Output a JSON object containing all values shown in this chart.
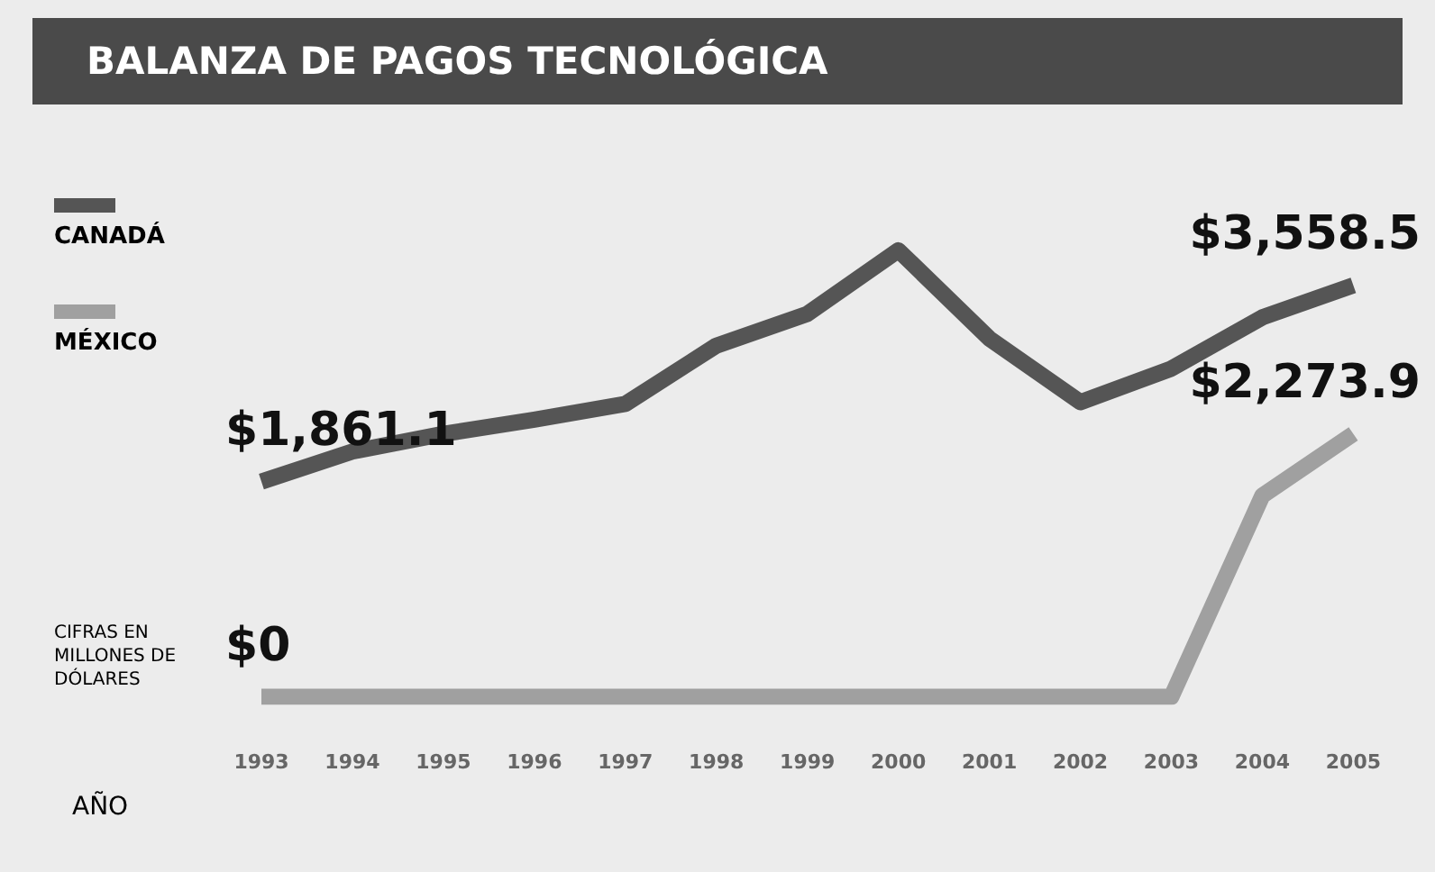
{
  "chart_data": {
    "type": "line",
    "title": "BALANZA DE PAGOS TECNOLÓGICA",
    "xlabel": "AÑO",
    "annotations": [
      "CIFRAS EN MILLONES DE DÓLARES"
    ],
    "categories": [
      "1993",
      "1994",
      "1995",
      "1996",
      "1997",
      "1998",
      "1999",
      "2000",
      "2001",
      "2002",
      "2003",
      "2004",
      "2005"
    ],
    "series": [
      {
        "name": "CANADÁ",
        "color": "#555555",
        "values": [
          1861.1,
          2121,
          2274,
          2396,
          2533,
          3037,
          3311,
          3861,
          3098,
          2548,
          2838,
          3281,
          3558.5
        ],
        "value_labels": [
          "$1,861.1",
          null,
          null,
          null,
          null,
          null,
          null,
          null,
          null,
          null,
          null,
          null,
          "$3,558.5"
        ]
      },
      {
        "name": "MÉXICO",
        "color": "#a0a0a0",
        "values": [
          0,
          0,
          0,
          0,
          0,
          0,
          0,
          0,
          0,
          0,
          0,
          1740,
          2273.9
        ],
        "value_labels": [
          "$0",
          null,
          null,
          null,
          null,
          null,
          null,
          null,
          null,
          null,
          null,
          null,
          "$2,273.9"
        ]
      }
    ],
    "grid": false,
    "legend": "left",
    "marker": "none",
    "line_style": "solid"
  }
}
